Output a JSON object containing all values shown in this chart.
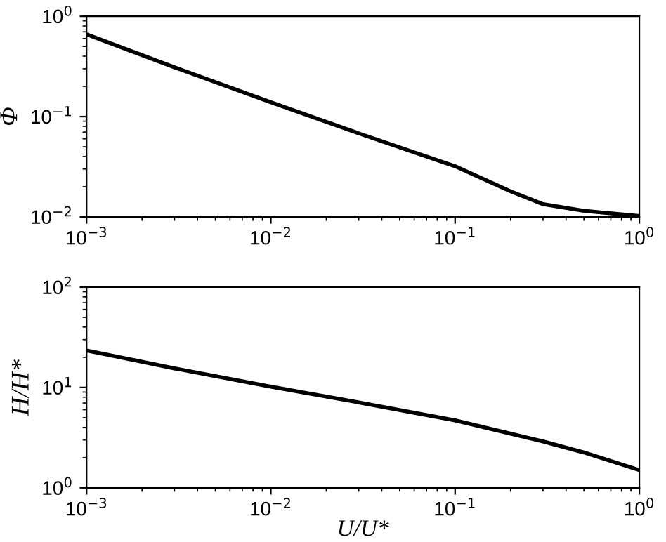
{
  "chart_data": [
    {
      "type": "line",
      "ylabel": "Φ",
      "log": "xy",
      "grid": false,
      "legend": false,
      "x": [
        0.001,
        0.003,
        0.01,
        0.03,
        0.1,
        0.2,
        0.3,
        0.5,
        1
      ],
      "series": [
        {
          "color": "#000000",
          "values": [
            0.66,
            0.31,
            0.139,
            0.068,
            0.032,
            0.018,
            0.0134,
            0.0115,
            0.0102
          ]
        }
      ],
      "xlim": [
        0.001,
        1
      ],
      "ylim": [
        0.01,
        1
      ],
      "xticks": [
        {
          "value": 0.001,
          "label": "10$^{−3}$"
        },
        {
          "value": 0.01,
          "label": "10$^{−2}$"
        },
        {
          "value": 0.1,
          "label": "10$^{−1}$"
        },
        {
          "value": 1,
          "label": "10$^{0}$"
        }
      ],
      "yticks": [
        {
          "value": 0.01,
          "label": "10$^{−2}$"
        },
        {
          "value": 0.1,
          "label": "10$^{−1}$"
        },
        {
          "value": 1,
          "label": "10$^{0}$"
        }
      ]
    },
    {
      "type": "line",
      "xlabel": "U/U*",
      "ylabel": "H/H*",
      "log": "xy",
      "grid": false,
      "legend": false,
      "x": [
        0.001,
        0.003,
        0.01,
        0.03,
        0.1,
        0.3,
        0.5,
        1
      ],
      "series": [
        {
          "color": "#000000",
          "values": [
            23.4,
            15.5,
            10.2,
            7.1,
            4.7,
            2.9,
            2.25,
            1.5
          ]
        }
      ],
      "xlim": [
        0.001,
        1
      ],
      "ylim": [
        1,
        100
      ],
      "xticks": [
        {
          "value": 0.001,
          "label": "10$^{−3}$"
        },
        {
          "value": 0.01,
          "label": "10$^{−2}$"
        },
        {
          "value": 0.1,
          "label": "10$^{−1}$"
        },
        {
          "value": 1,
          "label": "10$^{0}$"
        }
      ],
      "yticks": [
        {
          "value": 1,
          "label": "10$^{0}$"
        },
        {
          "value": 10,
          "label": "10$^{1}$"
        },
        {
          "value": 100,
          "label": "10$^{2}$"
        }
      ]
    }
  ]
}
